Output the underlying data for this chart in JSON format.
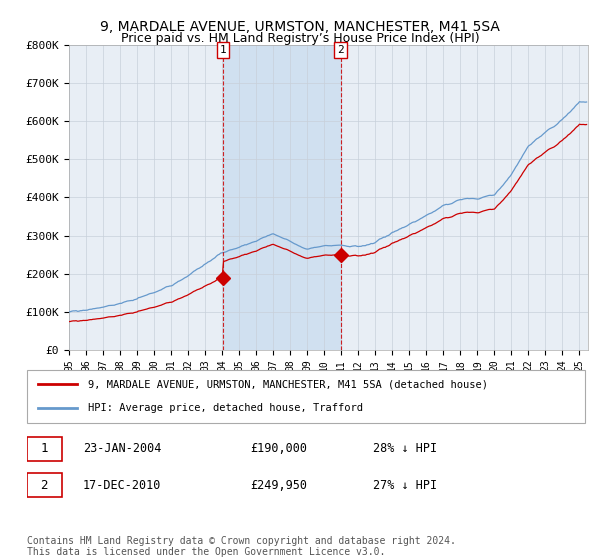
{
  "title": "9, MARDALE AVENUE, URMSTON, MANCHESTER, M41 5SA",
  "subtitle": "Price paid vs. HM Land Registry’s House Price Index (HPI)",
  "ylabel_ticks": [
    "£0",
    "£100K",
    "£200K",
    "£300K",
    "£400K",
    "£500K",
    "£600K",
    "£700K",
    "£800K"
  ],
  "ylim": [
    0,
    800000
  ],
  "xlim_start": 1995.0,
  "xlim_end": 2025.5,
  "background_color": "#ffffff",
  "plot_bg_color": "#e8eef5",
  "shade_color": "#d0e0f0",
  "grid_color": "#c8d0da",
  "hpi_color": "#6699cc",
  "price_color": "#cc0000",
  "vline_color": "#cc0000",
  "marker1_x": 2004.07,
  "marker1_y": 190000,
  "marker2_x": 2010.96,
  "marker2_y": 249950,
  "legend_line1": "9, MARDALE AVENUE, URMSTON, MANCHESTER, M41 5SA (detached house)",
  "legend_line2": "HPI: Average price, detached house, Trafford",
  "date1": "23-JAN-2004",
  "price1": "£190,000",
  "pct1": "28% ↓ HPI",
  "date2": "17-DEC-2010",
  "price2": "£249,950",
  "pct2": "27% ↓ HPI",
  "footer": "Contains HM Land Registry data © Crown copyright and database right 2024.\nThis data is licensed under the Open Government Licence v3.0."
}
